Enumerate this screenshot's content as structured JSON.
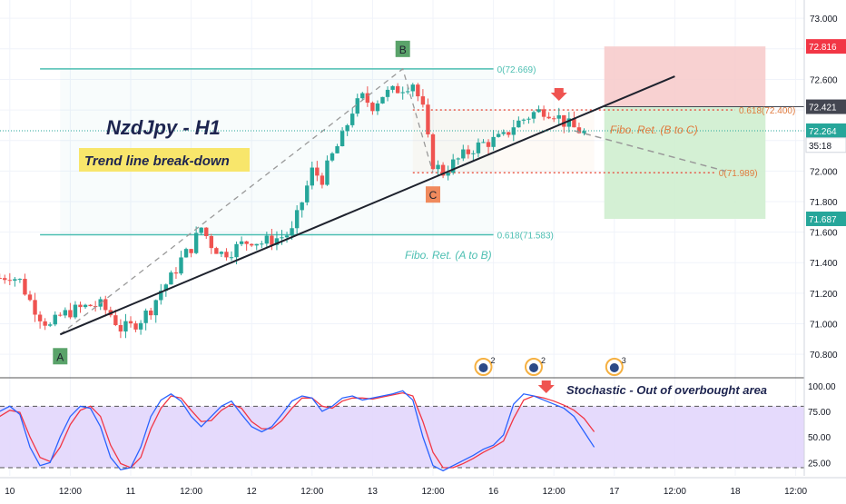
{
  "chart_data": {
    "type": "candlestick",
    "symbol_label": "NzdJpy - H1",
    "note_label": "Trend line break-down",
    "price_axis": {
      "ticks": [
        "73.000",
        "72.800",
        "72.600",
        "72.400",
        "72.200",
        "72.000",
        "71.800",
        "71.600",
        "71.400",
        "71.200",
        "71.000",
        "70.800"
      ],
      "tick_values": [
        73.0,
        72.8,
        72.6,
        72.4,
        72.2,
        72.0,
        71.8,
        71.6,
        71.4,
        71.2,
        71.0,
        70.8
      ],
      "ylim": [
        70.67,
        73.12
      ]
    },
    "price_badges": [
      {
        "label": "72.816",
        "value": 72.816,
        "color": "#f23645"
      },
      {
        "label": "72.421",
        "value": 72.421,
        "color": "#434651"
      },
      {
        "label": "72.264",
        "value": 72.264,
        "color": "#26a69a"
      },
      {
        "label": "35:18",
        "value": 72.17,
        "color": "#ffffff"
      },
      {
        "label": "71.687",
        "value": 71.687,
        "color": "#26a69a"
      }
    ],
    "time_axis": {
      "labels": [
        "10",
        "12:00",
        "11",
        "12:00",
        "12",
        "12:00",
        "13",
        "12:00",
        "16",
        "12:00",
        "17",
        "12:00",
        "18",
        "12:00"
      ],
      "hour_index": [
        -8,
        4,
        16,
        28,
        40,
        52,
        64,
        76,
        88,
        100,
        112,
        124,
        136,
        148
      ]
    },
    "candles_summary": "Hourly NZD/JPY moving from about 71.25 up to a high near 72.669 (point B), pulling back to about 71.989 (point C), recovering toward 72.42 and breaking below the rising trend line near 72.26",
    "close_path": [
      [
        -10,
        71.3
      ],
      [
        -8,
        71.32
      ],
      [
        -6,
        71.28
      ],
      [
        -4,
        71.15
      ],
      [
        -2,
        71.05
      ],
      [
        0,
        70.98
      ],
      [
        2,
        71.05
      ],
      [
        4,
        71.08
      ],
      [
        6,
        71.1
      ],
      [
        8,
        71.12
      ],
      [
        10,
        71.12
      ],
      [
        12,
        71.06
      ],
      [
        14,
        70.97
      ],
      [
        16,
        70.98
      ],
      [
        18,
        71.03
      ],
      [
        20,
        71.1
      ],
      [
        22,
        71.22
      ],
      [
        24,
        71.3
      ],
      [
        26,
        71.42
      ],
      [
        28,
        71.5
      ],
      [
        30,
        71.63
      ],
      [
        32,
        71.52
      ],
      [
        34,
        71.46
      ],
      [
        36,
        71.48
      ],
      [
        38,
        71.52
      ],
      [
        40,
        71.55
      ],
      [
        42,
        71.53
      ],
      [
        44,
        71.55
      ],
      [
        46,
        71.57
      ],
      [
        48,
        71.6
      ],
      [
        50,
        71.8
      ],
      [
        52,
        72.0
      ],
      [
        54,
        71.95
      ],
      [
        56,
        72.1
      ],
      [
        58,
        72.22
      ],
      [
        60,
        72.4
      ],
      [
        62,
        72.48
      ],
      [
        64,
        72.43
      ],
      [
        66,
        72.5
      ],
      [
        68,
        72.52
      ],
      [
        70,
        72.55
      ],
      [
        72,
        72.58
      ],
      [
        74,
        72.4
      ],
      [
        75,
        72.2
      ],
      [
        76,
        72.05
      ],
      [
        78,
        71.99
      ],
      [
        80,
        72.05
      ],
      [
        82,
        72.1
      ],
      [
        84,
        72.15
      ],
      [
        86,
        72.18
      ],
      [
        88,
        72.2
      ],
      [
        90,
        72.22
      ],
      [
        92,
        72.3
      ],
      [
        94,
        72.34
      ],
      [
        96,
        72.38
      ],
      [
        98,
        72.4
      ],
      [
        100,
        72.38
      ],
      [
        102,
        72.32
      ],
      [
        104,
        72.28
      ],
      [
        106,
        72.25
      ]
    ],
    "trend_line": {
      "from": {
        "x": 2,
        "y": 70.93
      },
      "to": {
        "x": 124,
        "y": 72.62
      }
    },
    "points": [
      {
        "label": "A",
        "x": 2,
        "y": 70.93,
        "placement": "below"
      },
      {
        "label": "B",
        "x": 70,
        "y": 72.669,
        "placement": "above"
      },
      {
        "label": "C",
        "x": 76,
        "y": 71.989,
        "placement": "below"
      }
    ],
    "fib_a_to_b": {
      "label": "Fibo. Ret. (A to B)",
      "levels": [
        {
          "label": "0(72.669)",
          "value": 72.669
        },
        {
          "label": "0.618(71.583)",
          "value": 71.583
        }
      ]
    },
    "fib_b_to_c": {
      "label": "Fibo. Ret. (B to C)",
      "levels": [
        {
          "label": "0.618(72.400)",
          "value": 72.4
        },
        {
          "label": "0(71.989)",
          "value": 71.989
        }
      ]
    },
    "position_box": {
      "entry": 72.421,
      "stop": 72.816,
      "target": 71.687,
      "from_hour": 110,
      "to_hour": 142
    },
    "projection": {
      "from": {
        "x": 104,
        "y": 72.264
      },
      "to": {
        "x": 134,
        "y": 72.0
      }
    },
    "stochastic": {
      "label": "Stochastic - Out of overbought area",
      "ticks": [
        "100.00",
        "75.00",
        "50.00",
        "25.00"
      ],
      "tick_values": [
        100,
        75,
        50,
        25
      ],
      "bands": [
        80,
        20
      ],
      "k": [
        [
          -10,
          75
        ],
        [
          -8,
          80
        ],
        [
          -6,
          72
        ],
        [
          -4,
          40
        ],
        [
          -2,
          22
        ],
        [
          0,
          25
        ],
        [
          2,
          50
        ],
        [
          4,
          70
        ],
        [
          6,
          80
        ],
        [
          8,
          78
        ],
        [
          10,
          60
        ],
        [
          12,
          30
        ],
        [
          14,
          18
        ],
        [
          16,
          20
        ],
        [
          18,
          40
        ],
        [
          20,
          70
        ],
        [
          22,
          86
        ],
        [
          24,
          92
        ],
        [
          26,
          85
        ],
        [
          28,
          70
        ],
        [
          30,
          60
        ],
        [
          32,
          70
        ],
        [
          34,
          80
        ],
        [
          36,
          85
        ],
        [
          38,
          72
        ],
        [
          40,
          60
        ],
        [
          42,
          55
        ],
        [
          44,
          60
        ],
        [
          46,
          72
        ],
        [
          48,
          85
        ],
        [
          50,
          90
        ],
        [
          52,
          88
        ],
        [
          54,
          75
        ],
        [
          56,
          80
        ],
        [
          58,
          88
        ],
        [
          60,
          90
        ],
        [
          62,
          86
        ],
        [
          64,
          88
        ],
        [
          66,
          90
        ],
        [
          68,
          92
        ],
        [
          70,
          95
        ],
        [
          72,
          86
        ],
        [
          74,
          50
        ],
        [
          76,
          22
        ],
        [
          78,
          17
        ],
        [
          80,
          22
        ],
        [
          82,
          27
        ],
        [
          84,
          32
        ],
        [
          86,
          38
        ],
        [
          88,
          42
        ],
        [
          90,
          52
        ],
        [
          92,
          82
        ],
        [
          94,
          92
        ],
        [
          96,
          90
        ],
        [
          98,
          86
        ],
        [
          100,
          82
        ],
        [
          102,
          78
        ],
        [
          104,
          70
        ],
        [
          106,
          55
        ],
        [
          108,
          40
        ]
      ],
      "d": [
        [
          -10,
          70
        ],
        [
          -8,
          76
        ],
        [
          -6,
          74
        ],
        [
          -4,
          50
        ],
        [
          -2,
          30
        ],
        [
          0,
          26
        ],
        [
          2,
          40
        ],
        [
          4,
          62
        ],
        [
          6,
          76
        ],
        [
          8,
          80
        ],
        [
          10,
          70
        ],
        [
          12,
          42
        ],
        [
          14,
          24
        ],
        [
          16,
          20
        ],
        [
          18,
          30
        ],
        [
          20,
          58
        ],
        [
          22,
          78
        ],
        [
          24,
          90
        ],
        [
          26,
          88
        ],
        [
          28,
          76
        ],
        [
          30,
          65
        ],
        [
          32,
          66
        ],
        [
          34,
          76
        ],
        [
          36,
          82
        ],
        [
          38,
          78
        ],
        [
          40,
          65
        ],
        [
          42,
          58
        ],
        [
          44,
          58
        ],
        [
          46,
          66
        ],
        [
          48,
          78
        ],
        [
          50,
          88
        ],
        [
          52,
          88
        ],
        [
          54,
          80
        ],
        [
          56,
          78
        ],
        [
          58,
          85
        ],
        [
          60,
          88
        ],
        [
          62,
          88
        ],
        [
          64,
          87
        ],
        [
          66,
          89
        ],
        [
          68,
          91
        ],
        [
          70,
          93
        ],
        [
          72,
          90
        ],
        [
          74,
          65
        ],
        [
          76,
          35
        ],
        [
          78,
          20
        ],
        [
          80,
          20
        ],
        [
          82,
          24
        ],
        [
          84,
          29
        ],
        [
          86,
          35
        ],
        [
          88,
          40
        ],
        [
          90,
          46
        ],
        [
          92,
          68
        ],
        [
          94,
          86
        ],
        [
          96,
          90
        ],
        [
          98,
          88
        ],
        [
          100,
          85
        ],
        [
          102,
          81
        ],
        [
          104,
          76
        ],
        [
          106,
          68
        ],
        [
          108,
          55
        ]
      ]
    },
    "event_icons": [
      {
        "label": "2",
        "x": 86
      },
      {
        "label": "2",
        "x": 96
      },
      {
        "label": "3",
        "x": 112
      }
    ],
    "colors": {
      "up": "#26a69a",
      "down": "#ef5350",
      "trend": "#1e222d",
      "fib_ab": "#4dbfb2",
      "fib_bc": "#e84c3d",
      "stop_zone": "#f7c9c9",
      "target_zone": "#cfeecf",
      "stoch_k": "#2962ff",
      "stoch_d": "#f23645",
      "stoch_bg": "#e1d4fb"
    }
  }
}
